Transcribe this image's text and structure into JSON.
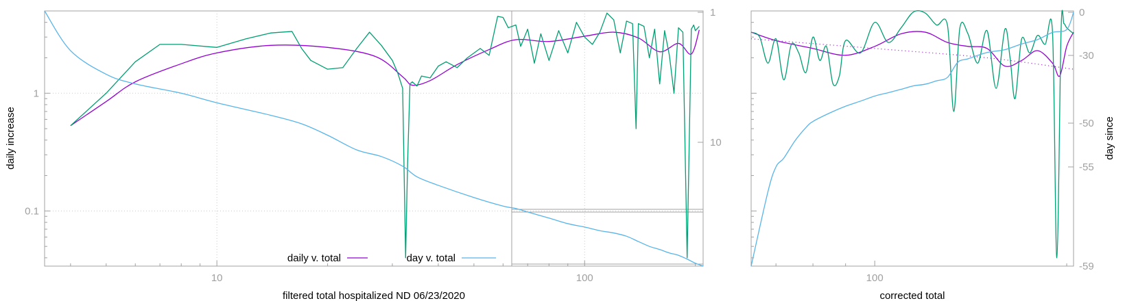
{
  "chart_data": [
    {
      "type": "line",
      "title": "",
      "xlabel": "filtered total hospitalized ND 06/23/2020",
      "ylabel": "daily increase",
      "xscale": "log",
      "yscale": "log",
      "xlim": [
        3.4,
        210
      ],
      "ylim": [
        0.034,
        5
      ],
      "x_tick_labels": [
        "10",
        "100"
      ],
      "x_ticks": [
        10,
        100
      ],
      "y_tick_labels": [
        "0.1",
        "1"
      ],
      "y_ticks": [
        0.1,
        1
      ],
      "y2_label": "",
      "y2_scale": "log",
      "y2_tick_labels": [
        "1",
        "10"
      ],
      "y2_ticks": [
        1,
        10
      ],
      "grid": true,
      "legend_position": "bottom-center",
      "series": [
        {
          "name": "daily v. total",
          "color": "#9400d3",
          "x": [
            4,
            5,
            6,
            8,
            10,
            14,
            20,
            27,
            32,
            34,
            38,
            45,
            55,
            65,
            80,
            100,
            120,
            140,
            160,
            180,
            195,
            205
          ],
          "y": [
            0.53,
            0.85,
            1.25,
            1.78,
            2.2,
            2.55,
            2.45,
            2.05,
            1.38,
            1.17,
            1.28,
            1.75,
            2.35,
            2.85,
            2.75,
            3.05,
            3.3,
            2.95,
            2.25,
            2.65,
            2.15,
            3.45
          ]
        },
        {
          "name": "",
          "color": "#009e73",
          "x": [
            4,
            5,
            6,
            7,
            8,
            10,
            12,
            14,
            16,
            17,
            18,
            20,
            22,
            24,
            26,
            28,
            30,
            31,
            32,
            32.6,
            33,
            33.5,
            34,
            35,
            36,
            38,
            40,
            42,
            45,
            48,
            52,
            55,
            58,
            60,
            62,
            65,
            67,
            70,
            73,
            76,
            80,
            85,
            90,
            95,
            100,
            105,
            110,
            115,
            120,
            125,
            130,
            135,
            138,
            140,
            145,
            150,
            155,
            160,
            165,
            170,
            175,
            180,
            185,
            190,
            195,
            198,
            200,
            205
          ],
          "y": [
            0.53,
            1.0,
            1.85,
            2.6,
            2.6,
            2.45,
            2.9,
            3.25,
            3.35,
            2.4,
            1.9,
            1.6,
            1.65,
            2.4,
            3.3,
            2.55,
            1.9,
            1.5,
            1.1,
            0.04,
            0.25,
            1.2,
            1.25,
            1.15,
            1.4,
            1.35,
            1.7,
            1.85,
            1.65,
            2.0,
            2.4,
            2.1,
            4.5,
            4.4,
            3.6,
            3.8,
            2.5,
            3.5,
            1.8,
            3.2,
            1.9,
            3.4,
            2.2,
            4.0,
            3.0,
            2.6,
            3.3,
            4.8,
            4.2,
            2.2,
            4.1,
            3.9,
            0.5,
            3.9,
            3.7,
            2.0,
            3.5,
            1.2,
            3.4,
            2.1,
            1.0,
            3.6,
            3.3,
            0.04,
            3.5,
            3.8,
            3.4,
            3.7
          ]
        },
        {
          "name": "day v. total",
          "color": "#56b4e9",
          "x": [
            3.4,
            4,
            5,
            6,
            8,
            10,
            14,
            17,
            20,
            24,
            28,
            32,
            35,
            40,
            50,
            60,
            65,
            70,
            80,
            90,
            100,
            110,
            120,
            130,
            140,
            150,
            160,
            170,
            180,
            190,
            200,
            210
          ],
          "y": [
            5.0,
            2.3,
            1.45,
            1.2,
            1.0,
            0.83,
            0.65,
            0.55,
            0.44,
            0.33,
            0.29,
            0.24,
            0.195,
            0.165,
            0.13,
            0.11,
            0.105,
            0.098,
            0.087,
            0.078,
            0.073,
            0.068,
            0.065,
            0.061,
            0.055,
            0.05,
            0.047,
            0.044,
            0.042,
            0.039,
            0.036,
            0.034
          ]
        }
      ]
    },
    {
      "type": "line",
      "title": "",
      "xlabel": "corrected total",
      "ylabel": "",
      "xscale": "log",
      "xlim": [
        64,
        205
      ],
      "x_tick_labels": [
        "100"
      ],
      "x_ticks": [
        100
      ],
      "y_left_scale": "log",
      "y_left_lim": [
        0.034,
        5
      ],
      "y2_label": "day since",
      "y2_lim": [
        -59,
        0
      ],
      "y2_tick_labels": [
        "0",
        "-30",
        "-50",
        "-55",
        "-59"
      ],
      "y2_ticks": [
        0,
        -30,
        -50,
        -55,
        -59
      ],
      "grid": false,
      "series": [
        {
          "name": "",
          "color": "#9400d3",
          "x": [
            64,
            70,
            80,
            90,
            100,
            110,
            120,
            130,
            140,
            150,
            160,
            170,
            180,
            190,
            195,
            200,
            205
          ],
          "y": [
            3.3,
            2.8,
            2.4,
            2.1,
            2.5,
            3.2,
            3.3,
            2.7,
            2.5,
            2.4,
            1.7,
            1.9,
            2.3,
            1.8,
            1.4,
            2.5,
            3.3
          ]
        },
        {
          "name": "",
          "color": "#009e73",
          "x": [
            64,
            66,
            68,
            70,
            72,
            74,
            76,
            78,
            80,
            82,
            84,
            86,
            88,
            90,
            95,
            100,
            105,
            110,
            115,
            120,
            125,
            130,
            133,
            136,
            140,
            145,
            150,
            155,
            160,
            163,
            166,
            170,
            175,
            180,
            185,
            190,
            193,
            196,
            198,
            200,
            205
          ],
          "y": [
            3.3,
            3.0,
            1.8,
            2.9,
            1.3,
            2.6,
            2.2,
            1.5,
            3.0,
            1.9,
            2.5,
            1.2,
            1.4,
            2.8,
            2.2,
            4.0,
            2.7,
            3.6,
            4.9,
            4.8,
            3.8,
            3.8,
            0.7,
            3.6,
            3.2,
            1.8,
            3.4,
            1.1,
            3.5,
            2.0,
            0.9,
            2.9,
            2.2,
            3.1,
            2.6,
            3.3,
            0.04,
            3.5,
            3.9,
            3.6,
            3.2
          ]
        },
        {
          "name": "",
          "color": "#9400d3",
          "style": "dotted",
          "x": [
            64,
            100,
            150,
            205
          ],
          "y": [
            2.9,
            2.4,
            2.0,
            1.6
          ]
        },
        {
          "name": "",
          "color": "#56b4e9",
          "x": [
            64,
            68,
            70,
            72,
            75,
            78,
            80,
            85,
            90,
            95,
            100,
            105,
            110,
            115,
            120,
            125,
            130,
            135,
            140,
            150,
            160,
            170,
            180,
            190,
            200,
            205
          ],
          "y2": [
            -59,
            -56,
            -55,
            -54,
            -52,
            -50.5,
            -49.5,
            -47,
            -45,
            -43.5,
            -42,
            -41,
            -40,
            -39,
            -38.5,
            -37.5,
            -36.5,
            -32,
            -31,
            -28,
            -26,
            -22,
            -19,
            -14,
            -12,
            0
          ]
        }
      ]
    }
  ]
}
